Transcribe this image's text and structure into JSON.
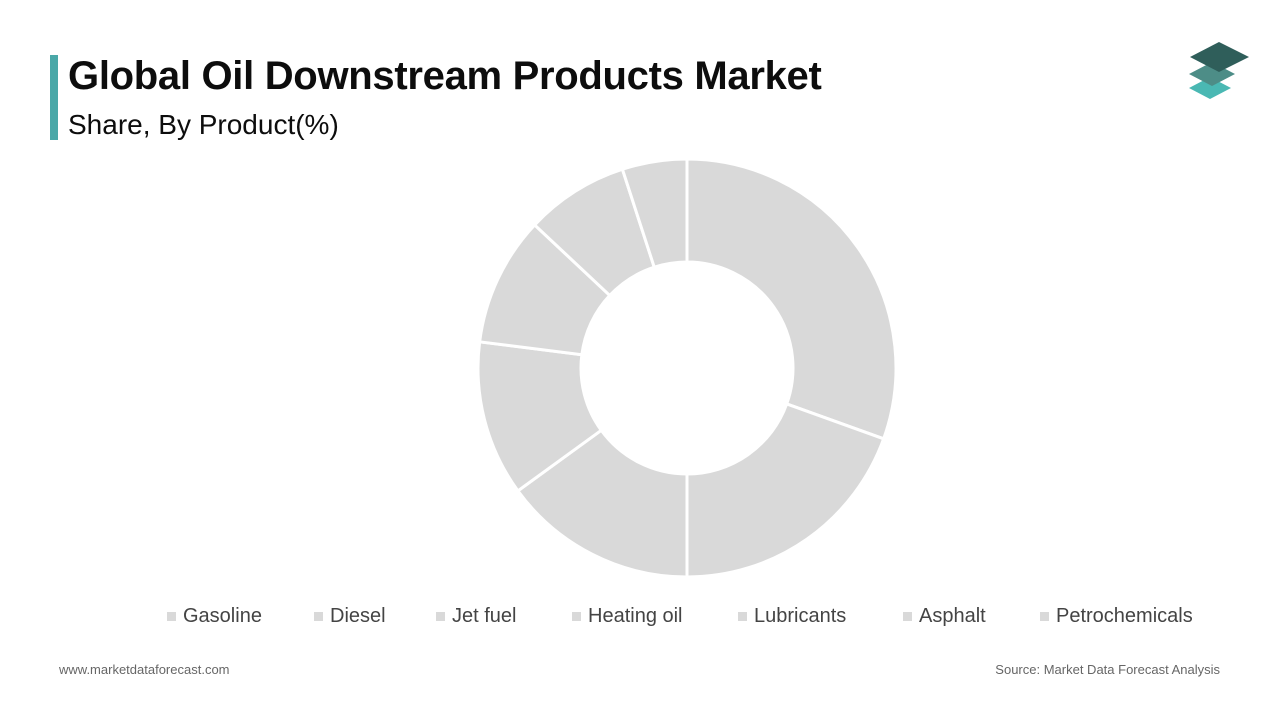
{
  "header": {
    "title": "Global Oil Downstream Products Market",
    "subtitle": "Share, By Product(%)"
  },
  "colors": {
    "accent": "#4aa8a8",
    "slice": "#d9d9d9",
    "slice_border": "#ffffff",
    "legend_swatch": "#d9d9d9",
    "logo_top": "#2f5e5a",
    "logo_mid": "#4d8d87",
    "logo_bottom": "#4ab8b3"
  },
  "logo": {
    "icon": "stacked-layers-icon"
  },
  "chart_data": {
    "type": "pie",
    "style": "donut",
    "title": "Global Oil Downstream Products Market",
    "subtitle": "Share, By Product(%)",
    "categories": [
      "Gasoline",
      "Diesel",
      "Jet fuel",
      "Heating oil",
      "Lubricants",
      "Asphalt",
      "Petrochemicals"
    ],
    "values": [
      30.5,
      19.5,
      15,
      12,
      10,
      8,
      5
    ],
    "legend_position": "bottom"
  },
  "footer": {
    "website": "www.marketdataforecast.com",
    "source": "Source: Market Data Forecast Analysis"
  }
}
